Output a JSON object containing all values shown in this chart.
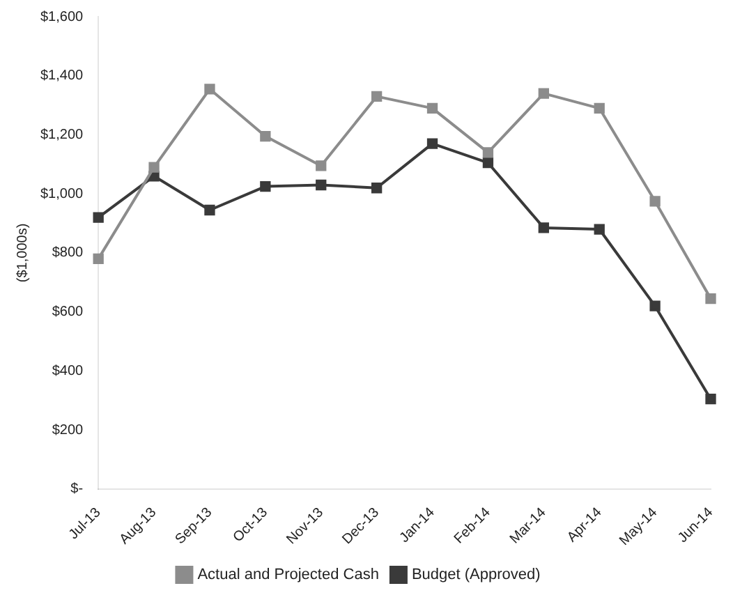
{
  "chart_data": {
    "type": "line",
    "ylabel": "($1,000s)",
    "categories": [
      "Jul-13",
      "Aug-13",
      "Sep-13",
      "Oct-13",
      "Nov-13",
      "Dec-13",
      "Jan-14",
      "Feb-14",
      "Mar-14",
      "Apr-14",
      "May-14",
      "Jun-14"
    ],
    "series": [
      {
        "name": "Actual and Projected Cash",
        "color": "#8c8c8c",
        "values": [
          780,
          1090,
          1355,
          1195,
          1095,
          1330,
          1290,
          1140,
          1340,
          1290,
          975,
          645
        ]
      },
      {
        "name": "Budget (Approved)",
        "color": "#3a3a3a",
        "values": [
          920,
          1060,
          945,
          1025,
          1030,
          1020,
          1170,
          1105,
          885,
          880,
          620,
          305
        ]
      }
    ],
    "ylim": [
      0,
      1600
    ],
    "yticks": [
      {
        "value": 0,
        "label": "$-"
      },
      {
        "value": 200,
        "label": "$200"
      },
      {
        "value": 400,
        "label": "$400"
      },
      {
        "value": 600,
        "label": "$600"
      },
      {
        "value": 800,
        "label": "$800"
      },
      {
        "value": 1000,
        "label": "$1,000"
      },
      {
        "value": 1200,
        "label": "$1,200"
      },
      {
        "value": 1400,
        "label": "$1,400"
      },
      {
        "value": 1600,
        "label": "$1,600"
      }
    ],
    "grid": false,
    "legend": "bottom",
    "marker": "square",
    "line_style": "solid"
  }
}
